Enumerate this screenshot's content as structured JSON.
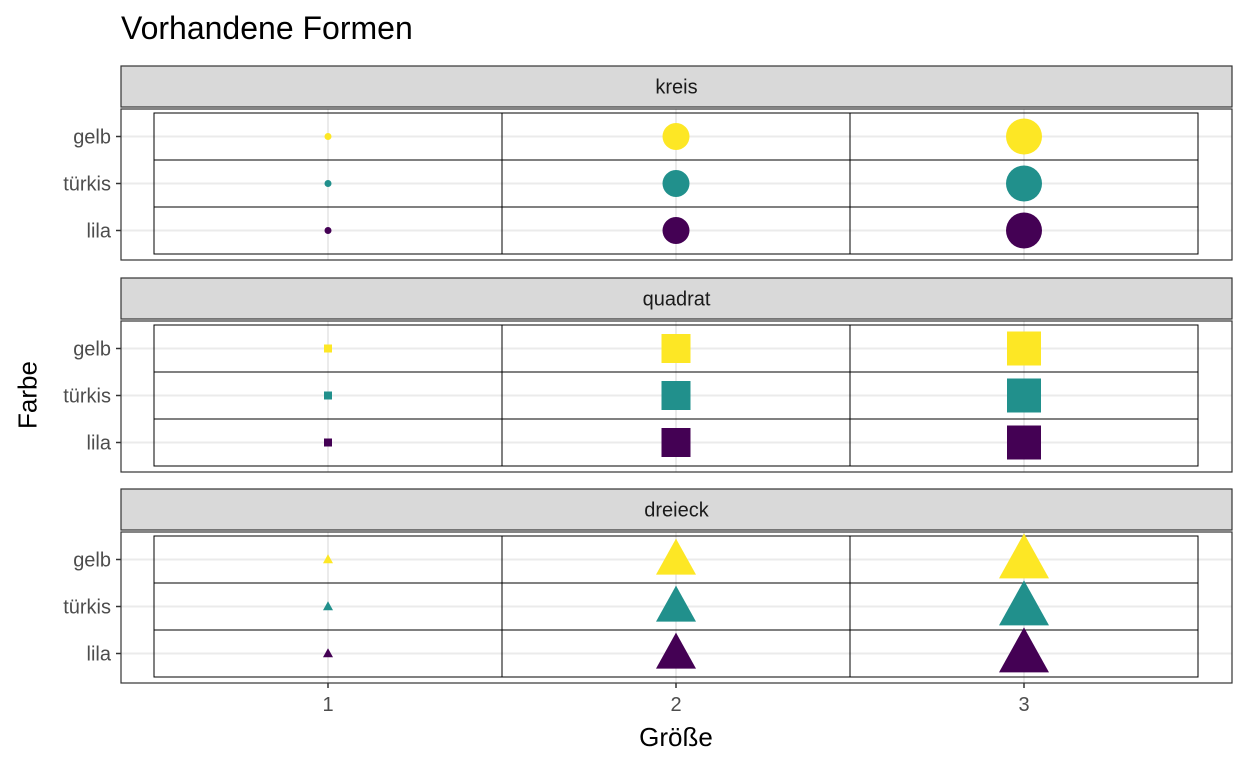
{
  "chart_data": {
    "type": "scatter",
    "title": "Vorhandene Formen",
    "xlabel": "Größe",
    "ylabel": "Farbe",
    "x_ticks": [
      "1",
      "2",
      "3"
    ],
    "y_categories": [
      "gelb",
      "türkis",
      "lila"
    ],
    "grid": true,
    "facets": [
      {
        "label": "kreis",
        "shape": "circle",
        "points": [
          {
            "x": 1,
            "y": "gelb",
            "size": 1
          },
          {
            "x": 2,
            "y": "gelb",
            "size": 2
          },
          {
            "x": 3,
            "y": "gelb",
            "size": 3
          },
          {
            "x": 1,
            "y": "türkis",
            "size": 1
          },
          {
            "x": 2,
            "y": "türkis",
            "size": 2
          },
          {
            "x": 3,
            "y": "türkis",
            "size": 3
          },
          {
            "x": 1,
            "y": "lila",
            "size": 1
          },
          {
            "x": 2,
            "y": "lila",
            "size": 2
          },
          {
            "x": 3,
            "y": "lila",
            "size": 3
          }
        ]
      },
      {
        "label": "quadrat",
        "shape": "square",
        "points": [
          {
            "x": 1,
            "y": "gelb",
            "size": 1
          },
          {
            "x": 2,
            "y": "gelb",
            "size": 2
          },
          {
            "x": 3,
            "y": "gelb",
            "size": 3
          },
          {
            "x": 1,
            "y": "türkis",
            "size": 1
          },
          {
            "x": 2,
            "y": "türkis",
            "size": 2
          },
          {
            "x": 3,
            "y": "türkis",
            "size": 3
          },
          {
            "x": 1,
            "y": "lila",
            "size": 1
          },
          {
            "x": 2,
            "y": "lila",
            "size": 2
          },
          {
            "x": 3,
            "y": "lila",
            "size": 3
          }
        ]
      },
      {
        "label": "dreieck",
        "shape": "triangle",
        "points": [
          {
            "x": 1,
            "y": "gelb",
            "size": 1
          },
          {
            "x": 2,
            "y": "gelb",
            "size": 2
          },
          {
            "x": 3,
            "y": "gelb",
            "size": 3
          },
          {
            "x": 1,
            "y": "türkis",
            "size": 1
          },
          {
            "x": 2,
            "y": "türkis",
            "size": 2
          },
          {
            "x": 3,
            "y": "türkis",
            "size": 3
          },
          {
            "x": 1,
            "y": "lila",
            "size": 1
          },
          {
            "x": 2,
            "y": "lila",
            "size": 2
          },
          {
            "x": 3,
            "y": "lila",
            "size": 3
          }
        ]
      }
    ],
    "colors": {
      "gelb": "#FDE725",
      "türkis": "#21908C",
      "lila": "#440154"
    }
  }
}
